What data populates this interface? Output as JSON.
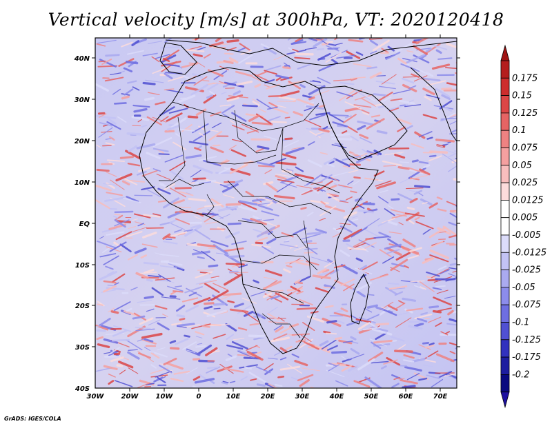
{
  "title": "Vertical velocity [m/s] at 300hPa, VT: 2020120418",
  "footer": "GrADS: IGES/COLA",
  "map": {
    "region": "Africa",
    "level": "300hPa",
    "variable": "Vertical velocity",
    "units": "m/s",
    "lat_labels": [
      "40N",
      "30N",
      "20N",
      "10N",
      "EQ",
      "10S",
      "20S",
      "30S",
      "40S"
    ],
    "lon_labels": [
      "30W",
      "20W",
      "10W",
      "0",
      "10E",
      "20E",
      "30E",
      "40E",
      "50E",
      "60E",
      "70E"
    ]
  },
  "colorbar": {
    "labels": [
      "0.175",
      "0.15",
      "0.125",
      "0.1",
      "0.075",
      "0.05",
      "0.025",
      "0.0125",
      "0.005",
      "-0.005",
      "-0.0125",
      "-0.025",
      "-0.05",
      "-0.075",
      "-0.1",
      "-0.125",
      "-0.175",
      "-0.2"
    ],
    "colors": [
      "#b41e1e",
      "#cd2d2d",
      "#dc4646",
      "#e66464",
      "#ee8282",
      "#f4a0a0",
      "#f8bebe",
      "#fcdcdc",
      "#ffffff",
      "#ffffff",
      "#dcdcfa",
      "#c3c3f5",
      "#aaaaf0",
      "#8c8ceb",
      "#6e6ee1",
      "#5050d2",
      "#3232be",
      "#1e1ea0",
      "#0a0a80"
    ]
  }
}
